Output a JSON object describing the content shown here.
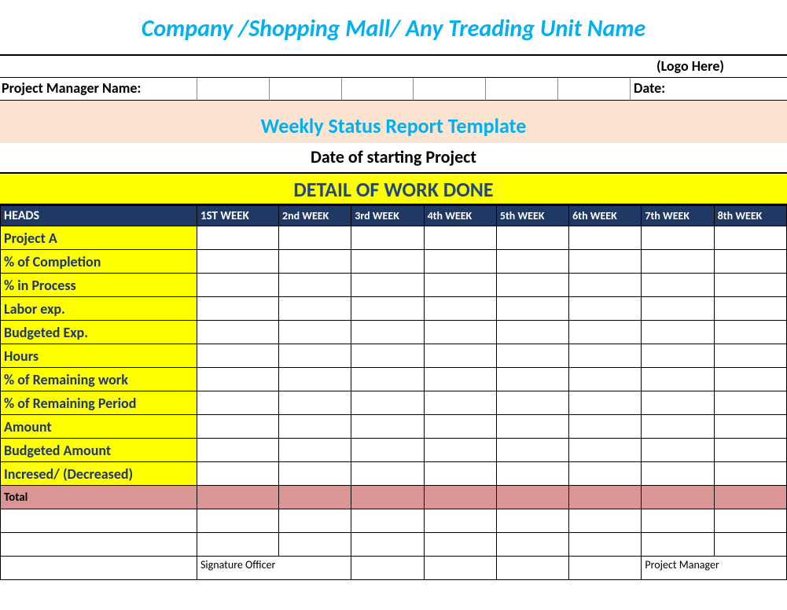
{
  "company_title": "Company /Shopping Mall/ Any Treading Unit Name",
  "logo_text": "(Logo Here)",
  "pm_label": "Project Manager  Name:",
  "date_label": "Date:",
  "subtitle": "Weekly Status Report Template",
  "date_start": "Date of starting Project",
  "section_header": "DETAIL OF WORK DONE",
  "columns": {
    "heads": "HEADS",
    "w1": "1ST WEEK",
    "w2": "2nd WEEK",
    "w3": "3rd WEEK",
    "w4": "4th WEEK",
    "w5": "5th WEEK",
    "w6": "6th WEEK",
    "w7": "7th WEEK",
    "w8": "8th WEEK"
  },
  "rows": [
    "Project A",
    "% of Completion",
    "% in Process",
    "Labor exp.",
    "Budgeted Exp.",
    "Hours",
    "% of Remaining work",
    "% of Remaining Period",
    "Amount",
    "Budgeted Amount",
    "Incresed/ (Decreased)"
  ],
  "total_label": "Total",
  "signature_officer": "Signature Officer",
  "project_manager_sig": "Project Manager",
  "colors": {
    "title_color": "#00b0f0",
    "subtitle_bg": "#fde4d0",
    "yellow": "#ffff00",
    "navy_header": "#1f3864",
    "row_head_text": "#1f3864",
    "total_bg": "#d99694"
  }
}
